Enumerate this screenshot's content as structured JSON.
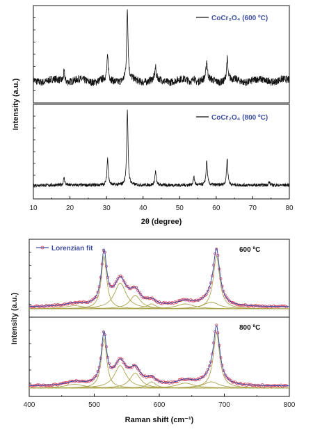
{
  "chart_data": [
    {
      "type": "line",
      "title": "",
      "xlabel": "2θ (degree)",
      "ylabel": "Intensity (a.u.)",
      "xlim": [
        10,
        80
      ],
      "x_ticks": [
        "10",
        "20",
        "30",
        "40",
        "50",
        "60",
        "70",
        "80"
      ],
      "panels": [
        {
          "series": [
            {
              "name": "CoCr₂O₄ (600 ºC)",
              "color": "#111111"
            }
          ],
          "baseline": 0.1,
          "peaks": [
            {
              "x": 18.4,
              "height": 0.12
            },
            {
              "x": 30.3,
              "height": 0.27
            },
            {
              "x": 35.7,
              "height": 0.85
            },
            {
              "x": 43.4,
              "height": 0.14
            },
            {
              "x": 53.9,
              "height": 0.07
            },
            {
              "x": 57.4,
              "height": 0.22
            },
            {
              "x": 63.0,
              "height": 0.26
            },
            {
              "x": 74.5,
              "height": 0.03
            }
          ]
        },
        {
          "series": [
            {
              "name": "CoCr₂O₄ (800 ºC)",
              "color": "#111111"
            }
          ],
          "baseline": 0.05,
          "peaks": [
            {
              "x": 18.4,
              "height": 0.09
            },
            {
              "x": 30.3,
              "height": 0.33
            },
            {
              "x": 35.7,
              "height": 0.92
            },
            {
              "x": 43.4,
              "height": 0.17
            },
            {
              "x": 53.9,
              "height": 0.1
            },
            {
              "x": 57.4,
              "height": 0.3
            },
            {
              "x": 63.0,
              "height": 0.33
            },
            {
              "x": 74.5,
              "height": 0.04
            }
          ]
        }
      ]
    },
    {
      "type": "line",
      "title": "",
      "xlabel": "Raman shift (cm⁻¹)",
      "ylabel": "Intensity (a.u.)",
      "xlim": [
        400,
        800
      ],
      "x_ticks": [
        "400",
        "500",
        "600",
        "700",
        "800"
      ],
      "legend": {
        "label": "Lorenzian fit",
        "color": "#3b4fa8"
      },
      "data_color": "#d23c5a",
      "fit_color": "#a9a24a",
      "panels": [
        {
          "label": "600 ºC",
          "baseline": 0.03,
          "components": [
            {
              "center": 470,
              "height": 0.05,
              "width": 18
            },
            {
              "center": 515,
              "height": 0.86,
              "width": 5
            },
            {
              "center": 540,
              "height": 0.42,
              "width": 11
            },
            {
              "center": 563,
              "height": 0.22,
              "width": 10
            },
            {
              "center": 588,
              "height": 0.08,
              "width": 8
            },
            {
              "center": 640,
              "height": 0.08,
              "width": 16
            },
            {
              "center": 680,
              "height": 0.11,
              "width": 14
            },
            {
              "center": 688,
              "height": 0.86,
              "width": 6
            }
          ]
        },
        {
          "label": "800 ºC",
          "baseline": 0.03,
          "components": [
            {
              "center": 470,
              "height": 0.06,
              "width": 18
            },
            {
              "center": 515,
              "height": 0.8,
              "width": 5
            },
            {
              "center": 540,
              "height": 0.36,
              "width": 11
            },
            {
              "center": 563,
              "height": 0.24,
              "width": 10
            },
            {
              "center": 588,
              "height": 0.1,
              "width": 8
            },
            {
              "center": 640,
              "height": 0.08,
              "width": 16
            },
            {
              "center": 680,
              "height": 0.1,
              "width": 14
            },
            {
              "center": 688,
              "height": 0.88,
              "width": 6
            }
          ]
        }
      ]
    }
  ]
}
